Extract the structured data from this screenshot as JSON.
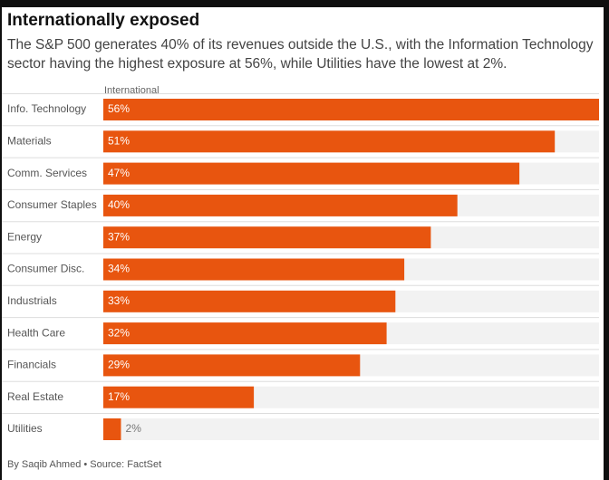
{
  "title": "Internationally exposed",
  "subtitle": "The S&P 500 generates 40% of its revenues outside the U.S., with the Information Technology sector having the highest exposure at 56%, while Utilities have the lowest at 2%.",
  "footer": "By Saqib Ahmed • Source: FactSet",
  "colors": {
    "bar": "#e8550f",
    "track": "#f2f2f2",
    "divider": "#dddddd"
  },
  "chart_data": {
    "type": "bar",
    "orientation": "horizontal",
    "title": "Internationally exposed",
    "series_label": "International",
    "categories": [
      "Info. Technology",
      "Materials",
      "Comm. Services",
      "Consumer Staples",
      "Energy",
      "Consumer Disc.",
      "Industrials",
      "Health Care",
      "Financials",
      "Real Estate",
      "Utilities"
    ],
    "values": [
      56,
      51,
      47,
      40,
      37,
      34,
      33,
      32,
      29,
      17,
      2
    ],
    "value_labels": [
      "56%",
      "51%",
      "47%",
      "40%",
      "37%",
      "34%",
      "33%",
      "32%",
      "29%",
      "17%",
      "2%"
    ],
    "unit": "%",
    "xlim": [
      0,
      56
    ],
    "grid": false,
    "legend": "none"
  }
}
